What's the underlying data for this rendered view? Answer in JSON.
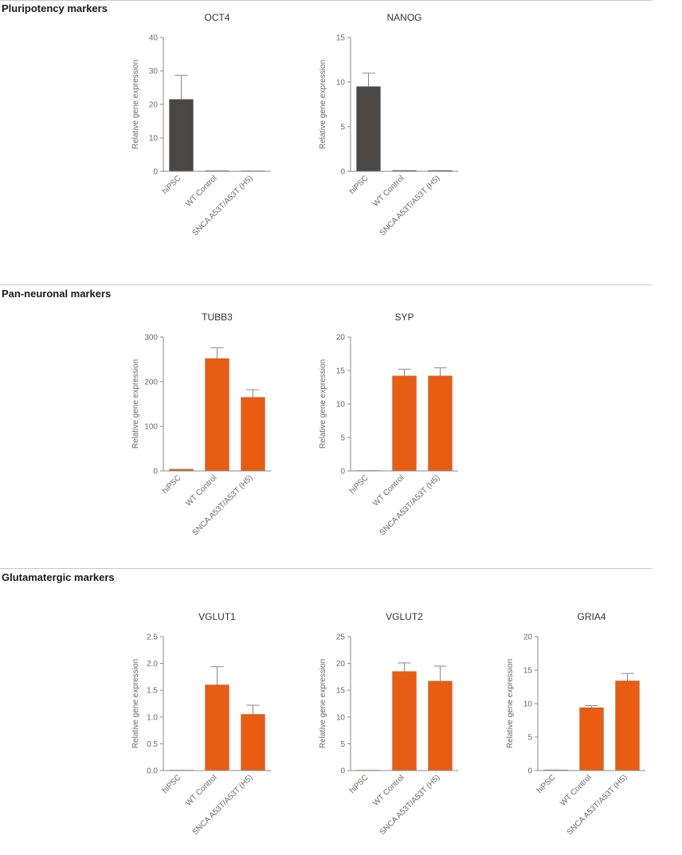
{
  "sections": [
    {
      "title": "Pluripotency markers"
    },
    {
      "title": "Pan-neuronal markers"
    },
    {
      "title": "Glutamatergic markers"
    }
  ],
  "colors": {
    "hipsc_bar": "#4a4744",
    "neuron_bar": "#e85d12",
    "axis": "#8a8a8a"
  },
  "chart_data": [
    {
      "type": "bar",
      "title": "OCT4",
      "ylabel": "Relative gene expression",
      "categories": [
        "hiPSC",
        "WT Control",
        "SNCA A53T/A53T (H5)"
      ],
      "values": [
        21.5,
        0.1,
        0
      ],
      "errors": [
        7.2,
        0,
        0
      ],
      "ylim": [
        0,
        40
      ],
      "yticks": [
        "0",
        "10",
        "20",
        "30",
        "40"
      ],
      "color": "#4a4744"
    },
    {
      "type": "bar",
      "title": "NANOG",
      "ylabel": "Relative gene expression",
      "categories": [
        "hiPSC",
        "WT Control",
        "SNCA A53T/A53T (H5)"
      ],
      "values": [
        9.5,
        0.1,
        0.1
      ],
      "errors": [
        1.5,
        0,
        0
      ],
      "ylim": [
        0,
        15
      ],
      "yticks": [
        "0",
        "5",
        "10",
        "15"
      ],
      "color": "#4a4744"
    },
    {
      "type": "bar",
      "title": "TUBB3",
      "ylabel": "Relative gene expression",
      "categories": [
        "hiPSC",
        "WT Control",
        "SNCA A53T/A53T (H5)"
      ],
      "values": [
        4,
        252,
        165
      ],
      "errors": [
        0,
        24,
        17
      ],
      "ylim": [
        0,
        300
      ],
      "yticks": [
        "0",
        "100",
        "200",
        "300"
      ],
      "color": "#e85d12"
    },
    {
      "type": "bar",
      "title": "SYP",
      "ylabel": "Relative gene expression",
      "categories": [
        "hiPSC",
        "WT Control",
        "SNCA A53T/A53T (H5)"
      ],
      "values": [
        0,
        14.2,
        14.2
      ],
      "errors": [
        0,
        1.0,
        1.2
      ],
      "ylim": [
        0,
        20
      ],
      "yticks": [
        "0",
        "5",
        "10",
        "15",
        "20"
      ],
      "color": "#e85d12"
    },
    {
      "type": "bar",
      "title": "VGLUT1",
      "ylabel": "Relative gene expression",
      "categories": [
        "hiPSC",
        "WT Control",
        "SNCA A53T/A53T (H5)"
      ],
      "values": [
        0,
        1.6,
        1.05
      ],
      "errors": [
        0,
        0.34,
        0.17
      ],
      "ylim": [
        0,
        2.5
      ],
      "yticks": [
        "0.0",
        "0.5",
        "1.0",
        "1.5",
        "2.0",
        "2.5"
      ],
      "color": "#e85d12"
    },
    {
      "type": "bar",
      "title": "VGLUT2",
      "ylabel": "Relative gene expression",
      "categories": [
        "hiPSC",
        "WT Control",
        "SNCA A53T/A53T (H5)"
      ],
      "values": [
        0,
        18.5,
        16.7
      ],
      "errors": [
        0,
        1.6,
        2.8
      ],
      "ylim": [
        0,
        25
      ],
      "yticks": [
        "0",
        "5",
        "10",
        "15",
        "20",
        "25"
      ],
      "color": "#e85d12"
    },
    {
      "type": "bar",
      "title": "GRIA4",
      "ylabel": "Relative gene expression",
      "categories": [
        "hiPSC",
        "WT Control",
        "SNCA A53T/A53T (H5)"
      ],
      "values": [
        0.1,
        9.4,
        13.4
      ],
      "errors": [
        0,
        0.3,
        1.1
      ],
      "ylim": [
        0,
        20
      ],
      "yticks": [
        "0",
        "5",
        "10",
        "15",
        "20"
      ],
      "color": "#e85d12"
    }
  ]
}
